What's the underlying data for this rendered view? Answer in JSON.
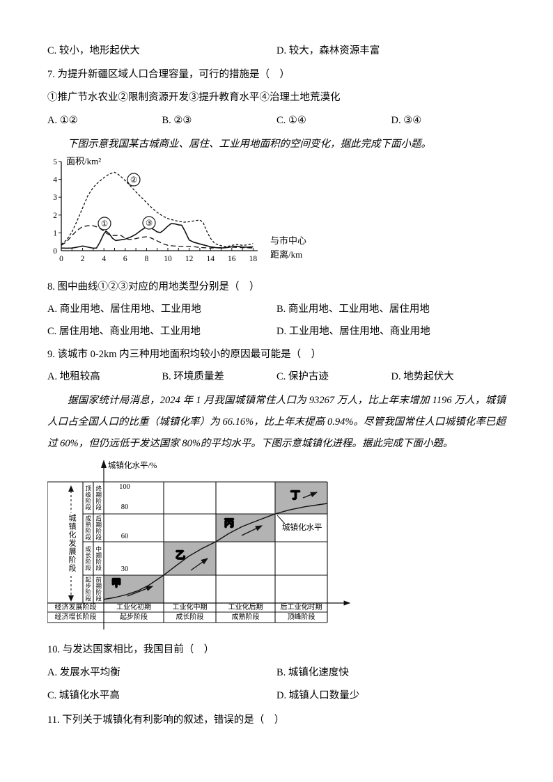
{
  "document": {
    "q6_options": {
      "C": "C. 较小，地形起伏大",
      "D": "D. 较大，森林资源丰富"
    },
    "q7": {
      "stem": "7. 为提升新疆区域人口合理容量，可行的措施是（　）",
      "numbered_items": "①推广节水农业②限制资源开发③提升教育水平④治理土地荒漠化",
      "options": [
        "A. ①②",
        "B. ②③",
        "C. ①④",
        "D. ③④"
      ]
    },
    "material1": "下图示意我国某古城商业、居住、工业用地面积的空间变化，据此完成下面小题。",
    "q8": {
      "stem": "8. 图中曲线①②③对应的用地类型分别是（　）",
      "options": [
        "A. 商业用地、居住用地、工业用地",
        "B. 商业用地、工业用地、居住用地",
        "C. 居住用地、商业用地、工业用地",
        "D. 工业用地、居住用地、商业用地"
      ]
    },
    "q9": {
      "stem": "9. 该城市 0-2km 内三种用地面积均较小的原因最可能是（　）",
      "options": [
        "A. 地租较高",
        "B. 环境质量差",
        "C. 保护古迹",
        "D. 地势起伏大"
      ]
    },
    "material2": "据国家统计局消息，2024 年 1 月我国城镇常住人口为 93267 万人，比上年末增加 1196 万人，城镇人口占全国人口的比重（城镇化率）为 66.16%，比上年末提高 0.94%。尽管我国常住人口城镇化率已超过 60%，但仍远低于发达国家 80%的平均水平。下图示意城镇化进程。据此完成下面小题。",
    "q10": {
      "stem": "10. 与发达国家相比，我国目前（　）",
      "options": [
        "A. 发展水平均衡",
        "B. 城镇化速度快",
        "C. 城镇化水平高",
        "D. 城镇人口数量少"
      ]
    },
    "q11": {
      "stem": "11. 下列关于城镇化有利影响的叙述，错误的是（　）"
    }
  },
  "chart_data": [
    {
      "type": "line",
      "title": "某古城商业、居住、工业用地面积的空间变化",
      "ylabel": "面积/km²",
      "xlabel_line1": "与市中心",
      "xlabel_line2": "距离/km",
      "xlim": [
        0,
        18
      ],
      "ylim": [
        0,
        5
      ],
      "x_ticks": [
        0,
        2,
        4,
        6,
        8,
        10,
        12,
        14,
        16,
        18
      ],
      "y_ticks": [
        0,
        1,
        2,
        3,
        4,
        5
      ],
      "series": [
        {
          "label": "①",
          "style": "long-dash",
          "points": [
            [
              0,
              0.3
            ],
            [
              0.5,
              0.5
            ],
            [
              1,
              0.85
            ],
            [
              1.5,
              1.15
            ],
            [
              2,
              1.35
            ],
            [
              2.5,
              1.4
            ],
            [
              3,
              1.4
            ],
            [
              3.5,
              1.3
            ],
            [
              4,
              1.1
            ],
            [
              4.3,
              0.95
            ],
            [
              4.6,
              0.87
            ],
            [
              5,
              0.85
            ],
            [
              5.6,
              0.85
            ],
            [
              6,
              0.7
            ],
            [
              6.4,
              0.62
            ],
            [
              7,
              0.68
            ],
            [
              7.5,
              0.75
            ],
            [
              8,
              0.78
            ],
            [
              8.4,
              0.72
            ],
            [
              9,
              0.55
            ],
            [
              9.5,
              0.4
            ],
            [
              10,
              0.3
            ],
            [
              10.5,
              0.27
            ],
            [
              11,
              0.25
            ],
            [
              12,
              0.25
            ],
            [
              12.5,
              0.22
            ],
            [
              13,
              0.18
            ],
            [
              14,
              0.15
            ],
            [
              15,
              0.18
            ],
            [
              16,
              0.2
            ],
            [
              17,
              0.17
            ],
            [
              18,
              0.15
            ]
          ]
        },
        {
          "label": "②",
          "style": "fine-dash",
          "points": [
            [
              0,
              0.35
            ],
            [
              0.5,
              0.6
            ],
            [
              1,
              1.05
            ],
            [
              1.5,
              1.7
            ],
            [
              2,
              2.4
            ],
            [
              2.5,
              3.1
            ],
            [
              3,
              3.55
            ],
            [
              3.5,
              3.85
            ],
            [
              4,
              4.1
            ],
            [
              4.5,
              4.3
            ],
            [
              5,
              4.4
            ],
            [
              5.3,
              4.3
            ],
            [
              5.8,
              4.05
            ],
            [
              6.3,
              3.75
            ],
            [
              7,
              3.3
            ],
            [
              7.5,
              3.0
            ],
            [
              8,
              2.7
            ],
            [
              8.5,
              2.4
            ],
            [
              9,
              2.15
            ],
            [
              9.5,
              1.95
            ],
            [
              10,
              1.8
            ],
            [
              10.5,
              1.72
            ],
            [
              11,
              1.65
            ],
            [
              11.5,
              1.6
            ],
            [
              12,
              1.62
            ],
            [
              12.5,
              1.68
            ],
            [
              13,
              1.72
            ],
            [
              13.3,
              1.6
            ],
            [
              13.6,
              1.15
            ],
            [
              14,
              0.7
            ],
            [
              14.4,
              0.4
            ],
            [
              15,
              0.28
            ],
            [
              15.5,
              0.22
            ],
            [
              16,
              0.3
            ],
            [
              16.5,
              0.35
            ],
            [
              17,
              0.3
            ],
            [
              17.5,
              0.33
            ],
            [
              18,
              0.4
            ]
          ]
        },
        {
          "label": "③",
          "style": "solid",
          "points": [
            [
              0,
              0.15
            ],
            [
              0.5,
              0.14
            ],
            [
              1,
              0.15
            ],
            [
              1.5,
              0.2
            ],
            [
              2,
              0.26
            ],
            [
              2.5,
              0.2
            ],
            [
              3,
              0.14
            ],
            [
              3.3,
              0.15
            ],
            [
              3.6,
              0.45
            ],
            [
              4,
              0.95
            ],
            [
              4.2,
              1.1
            ],
            [
              4.5,
              0.95
            ],
            [
              4.8,
              0.7
            ],
            [
              5.1,
              0.57
            ],
            [
              5.5,
              0.6
            ],
            [
              6,
              0.65
            ],
            [
              6.5,
              0.76
            ],
            [
              7,
              0.92
            ],
            [
              7.5,
              1.15
            ],
            [
              7.9,
              1.3
            ],
            [
              8.3,
              1.3
            ],
            [
              8.7,
              1.18
            ],
            [
              9,
              1.05
            ],
            [
              9.3,
              1.02
            ],
            [
              9.6,
              1.15
            ],
            [
              10,
              1.38
            ],
            [
              10.3,
              1.52
            ],
            [
              10.7,
              1.5
            ],
            [
              11,
              1.45
            ],
            [
              11.3,
              1.43
            ],
            [
              11.6,
              1.1
            ],
            [
              12,
              0.6
            ],
            [
              12.4,
              0.48
            ],
            [
              13,
              0.38
            ],
            [
              13.5,
              0.3
            ],
            [
              14,
              0.22
            ],
            [
              14.5,
              0.17
            ],
            [
              15,
              0.15
            ],
            [
              15.5,
              0.17
            ],
            [
              16,
              0.22
            ],
            [
              16.5,
              0.25
            ],
            [
              17,
              0.2
            ],
            [
              17.5,
              0.2
            ],
            [
              18,
              0.22
            ]
          ]
        }
      ]
    },
    {
      "type": "line",
      "title": "城镇化进程",
      "ylabel": "城镇化水平/%",
      "left_axis_label": "城镇化发展阶段",
      "y_ticks": [
        "100",
        "80",
        "60",
        "30"
      ],
      "stage_col1": [
        "顶级阶段",
        "成熟阶段",
        "成长阶段",
        "起步阶段"
      ],
      "stage_col2": [
        "终期阶段",
        "后期阶段",
        "中期阶段",
        "前期阶段"
      ],
      "zones": [
        "甲",
        "乙",
        "丙",
        "丁"
      ],
      "zone_fill": "#b3b3b3",
      "curve_label": "城镇化水平",
      "econ_dev_row": [
        "经济发展阶段",
        "工业化初期",
        "工业化中期",
        "工业化后期",
        "后工业化时期"
      ],
      "econ_growth_row": [
        "经济增长阶段",
        "起步阶段",
        "成长阶段",
        "成熟阶段",
        "顶峰阶段"
      ],
      "curve": {
        "points": [
          [
            0,
            4
          ],
          [
            0.05,
            6
          ],
          [
            0.1,
            9
          ],
          [
            0.15,
            13
          ],
          [
            0.2,
            19
          ],
          [
            0.268,
            30
          ],
          [
            0.32,
            38
          ],
          [
            0.38,
            47
          ],
          [
            0.44,
            54
          ],
          [
            0.501,
            60
          ],
          [
            0.56,
            66
          ],
          [
            0.62,
            71
          ],
          [
            0.7,
            76
          ],
          [
            0.766,
            80
          ],
          [
            0.83,
            82.5
          ],
          [
            0.9,
            84.5
          ],
          [
            1,
            86.5
          ]
        ]
      }
    }
  ]
}
